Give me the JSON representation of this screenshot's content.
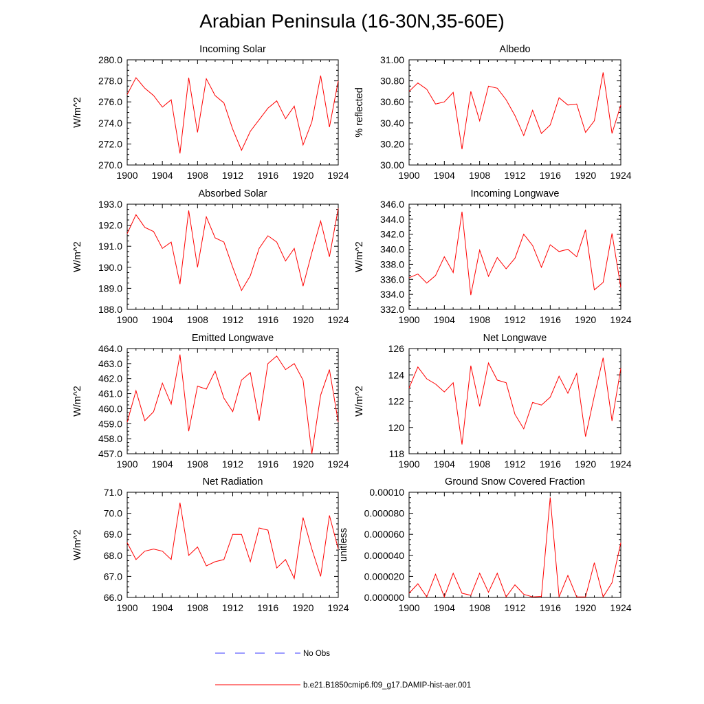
{
  "title": "Arabian Peninsula (16-30N,35-60E)",
  "legend": {
    "items": [
      {
        "label": "No Obs",
        "color": "#3a3aff",
        "style": "dashed"
      },
      {
        "label": "b.e21.B1850cmip6.f09_g17.DAMIP-hist-aer.001",
        "color": "#ff0000",
        "style": "solid"
      }
    ]
  },
  "chart_data": [
    {
      "type": "line",
      "title": "Incoming Solar",
      "ylabel": "W/m^2",
      "xlim": [
        1900,
        1924
      ],
      "ylim": [
        270.0,
        280.0
      ],
      "xticks": [
        1900,
        1904,
        1908,
        1912,
        1916,
        1920,
        1924
      ],
      "yticks": [
        "270.0",
        "272.0",
        "274.0",
        "276.0",
        "278.0",
        "280.0"
      ],
      "x": [
        1900,
        1901,
        1902,
        1903,
        1904,
        1905,
        1906,
        1907,
        1908,
        1909,
        1910,
        1911,
        1912,
        1913,
        1914,
        1915,
        1916,
        1917,
        1918,
        1919,
        1920,
        1921,
        1922,
        1923,
        1924
      ],
      "series": [
        {
          "name": "b.e21.B1850cmip6.f09_g17.DAMIP-hist-aer.001",
          "color": "#ff0000",
          "values": [
            276.7,
            278.3,
            277.3,
            276.6,
            275.5,
            276.2,
            271.1,
            278.3,
            273.1,
            278.2,
            276.6,
            275.9,
            273.4,
            271.4,
            273.2,
            274.3,
            275.4,
            276.1,
            274.4,
            275.6,
            271.9,
            274.1,
            278.5,
            273.6,
            278.0
          ]
        }
      ]
    },
    {
      "type": "line",
      "title": "Albedo",
      "ylabel": "% reflected",
      "xlim": [
        1900,
        1924
      ],
      "ylim": [
        30.0,
        31.0
      ],
      "xticks": [
        1900,
        1904,
        1908,
        1912,
        1916,
        1920,
        1924
      ],
      "yticks": [
        "30.00",
        "30.20",
        "30.40",
        "30.60",
        "30.80",
        "31.00"
      ],
      "x": [
        1900,
        1901,
        1902,
        1903,
        1904,
        1905,
        1906,
        1907,
        1908,
        1909,
        1910,
        1911,
        1912,
        1913,
        1914,
        1915,
        1916,
        1917,
        1918,
        1919,
        1920,
        1921,
        1922,
        1923,
        1924
      ],
      "series": [
        {
          "name": "b.e21.B1850cmip6.f09_g17.DAMIP-hist-aer.001",
          "color": "#ff0000",
          "values": [
            30.7,
            30.78,
            30.72,
            30.58,
            30.6,
            30.69,
            30.15,
            30.7,
            30.42,
            30.75,
            30.73,
            30.62,
            30.47,
            30.28,
            30.52,
            30.3,
            30.38,
            30.64,
            30.57,
            30.58,
            30.31,
            30.42,
            30.88,
            30.3,
            30.57
          ]
        }
      ]
    },
    {
      "type": "line",
      "title": "Absorbed Solar",
      "ylabel": "W/m^2",
      "xlim": [
        1900,
        1924
      ],
      "ylim": [
        188.0,
        193.0
      ],
      "xticks": [
        1900,
        1904,
        1908,
        1912,
        1916,
        1920,
        1924
      ],
      "yticks": [
        "188.0",
        "189.0",
        "190.0",
        "191.0",
        "192.0",
        "193.0"
      ],
      "x": [
        1900,
        1901,
        1902,
        1903,
        1904,
        1905,
        1906,
        1907,
        1908,
        1909,
        1910,
        1911,
        1912,
        1913,
        1914,
        1915,
        1916,
        1917,
        1918,
        1919,
        1920,
        1921,
        1922,
        1923,
        1924
      ],
      "series": [
        {
          "name": "b.e21.B1850cmip6.f09_g17.DAMIP-hist-aer.001",
          "color": "#ff0000",
          "values": [
            191.6,
            192.5,
            191.9,
            191.7,
            190.9,
            191.2,
            189.2,
            192.7,
            190.0,
            192.4,
            191.4,
            191.2,
            190.0,
            188.9,
            189.6,
            190.9,
            191.5,
            191.2,
            190.3,
            190.9,
            189.1,
            190.7,
            192.2,
            190.5,
            192.8
          ]
        }
      ]
    },
    {
      "type": "line",
      "title": "Incoming Longwave",
      "ylabel": "W/m^2",
      "xlim": [
        1900,
        1924
      ],
      "ylim": [
        332.0,
        346.0
      ],
      "xticks": [
        1900,
        1904,
        1908,
        1912,
        1916,
        1920,
        1924
      ],
      "yticks": [
        "332.0",
        "334.0",
        "336.0",
        "338.0",
        "340.0",
        "342.0",
        "344.0",
        "346.0"
      ],
      "x": [
        1900,
        1901,
        1902,
        1903,
        1904,
        1905,
        1906,
        1907,
        1908,
        1909,
        1910,
        1911,
        1912,
        1913,
        1914,
        1915,
        1916,
        1917,
        1918,
        1919,
        1920,
        1921,
        1922,
        1923,
        1924
      ],
      "series": [
        {
          "name": "b.e21.B1850cmip6.f09_g17.DAMIP-hist-aer.001",
          "color": "#ff0000",
          "values": [
            336.2,
            336.7,
            335.5,
            336.5,
            339.0,
            336.9,
            345.0,
            333.9,
            339.9,
            336.4,
            338.9,
            337.4,
            338.8,
            342.0,
            340.5,
            337.6,
            340.6,
            339.7,
            340.0,
            339.0,
            342.6,
            334.6,
            335.6,
            342.1,
            334.9
          ]
        }
      ]
    },
    {
      "type": "line",
      "title": "Emitted Longwave",
      "ylabel": "W/m^2",
      "xlim": [
        1900,
        1924
      ],
      "ylim": [
        457.0,
        464.0
      ],
      "xticks": [
        1900,
        1904,
        1908,
        1912,
        1916,
        1920,
        1924
      ],
      "yticks": [
        "457.0",
        "458.0",
        "459.0",
        "460.0",
        "461.0",
        "462.0",
        "463.0",
        "464.0"
      ],
      "x": [
        1900,
        1901,
        1902,
        1903,
        1904,
        1905,
        1906,
        1907,
        1908,
        1909,
        1910,
        1911,
        1912,
        1913,
        1914,
        1915,
        1916,
        1917,
        1918,
        1919,
        1920,
        1921,
        1922,
        1923,
        1924
      ],
      "series": [
        {
          "name": "b.e21.B1850cmip6.f09_g17.DAMIP-hist-aer.001",
          "color": "#ff0000",
          "values": [
            459.1,
            461.2,
            459.2,
            459.8,
            461.7,
            460.3,
            463.6,
            458.5,
            461.5,
            461.3,
            462.5,
            460.7,
            459.8,
            461.9,
            462.4,
            459.2,
            463.0,
            463.5,
            462.6,
            463.0,
            461.9,
            457.0,
            460.9,
            462.6,
            459.1
          ]
        }
      ]
    },
    {
      "type": "line",
      "title": "Net Longwave",
      "ylabel": "W/m^2",
      "xlim": [
        1900,
        1924
      ],
      "ylim": [
        118,
        126
      ],
      "xticks": [
        1900,
        1904,
        1908,
        1912,
        1916,
        1920,
        1924
      ],
      "yticks": [
        "118",
        "120",
        "122",
        "124",
        "126"
      ],
      "x": [
        1900,
        1901,
        1902,
        1903,
        1904,
        1905,
        1906,
        1907,
        1908,
        1909,
        1910,
        1911,
        1912,
        1913,
        1914,
        1915,
        1916,
        1917,
        1918,
        1919,
        1920,
        1921,
        1922,
        1923,
        1924
      ],
      "series": [
        {
          "name": "b.e21.B1850cmip6.f09_g17.DAMIP-hist-aer.001",
          "color": "#ff0000",
          "values": [
            123.0,
            124.6,
            123.7,
            123.3,
            122.7,
            123.4,
            118.7,
            124.7,
            121.6,
            124.9,
            123.6,
            123.4,
            121.0,
            119.9,
            121.9,
            121.7,
            122.3,
            123.9,
            122.6,
            124.1,
            119.3,
            122.4,
            125.3,
            120.5,
            124.5
          ]
        }
      ]
    },
    {
      "type": "line",
      "title": "Net Radiation",
      "ylabel": "W/m^2",
      "xlim": [
        1900,
        1924
      ],
      "ylim": [
        66.0,
        71.0
      ],
      "xticks": [
        1900,
        1904,
        1908,
        1912,
        1916,
        1920,
        1924
      ],
      "yticks": [
        "66.0",
        "67.0",
        "68.0",
        "69.0",
        "70.0",
        "71.0"
      ],
      "x": [
        1900,
        1901,
        1902,
        1903,
        1904,
        1905,
        1906,
        1907,
        1908,
        1909,
        1910,
        1911,
        1912,
        1913,
        1914,
        1915,
        1916,
        1917,
        1918,
        1919,
        1920,
        1921,
        1922,
        1923,
        1924
      ],
      "series": [
        {
          "name": "b.e21.B1850cmip6.f09_g17.DAMIP-hist-aer.001",
          "color": "#ff0000",
          "values": [
            68.6,
            67.8,
            68.2,
            68.3,
            68.2,
            67.8,
            70.5,
            68.0,
            68.4,
            67.5,
            67.7,
            67.8,
            69.0,
            69.0,
            67.7,
            69.3,
            69.2,
            67.4,
            67.8,
            66.9,
            69.8,
            68.3,
            67.0,
            69.9,
            68.3
          ]
        }
      ]
    },
    {
      "type": "line",
      "title": "Ground Snow Covered Fraction",
      "ylabel": "unitless",
      "xlim": [
        1900,
        1924
      ],
      "ylim": [
        0.0,
        0.0001
      ],
      "xticks": [
        1900,
        1904,
        1908,
        1912,
        1916,
        1920,
        1924
      ],
      "yticks": [
        "0.000000",
        "0.000020",
        "0.000040",
        "0.000060",
        "0.000080",
        "0.00010"
      ],
      "x": [
        1900,
        1901,
        1902,
        1903,
        1904,
        1905,
        1906,
        1907,
        1908,
        1909,
        1910,
        1911,
        1912,
        1913,
        1914,
        1915,
        1916,
        1917,
        1918,
        1919,
        1920,
        1921,
        1922,
        1923,
        1924
      ],
      "series": [
        {
          "name": "b.e21.B1850cmip6.f09_g17.DAMIP-hist-aer.001",
          "color": "#ff0000",
          "values": [
            4e-06,
            1.3e-05,
            5e-07,
            2.2e-05,
            5e-07,
            2.3e-05,
            4e-06,
            2e-06,
            2.3e-05,
            5e-06,
            2.3e-05,
            5e-07,
            1.2e-05,
            3e-06,
            5e-07,
            1e-06,
            9.5e-05,
            5e-07,
            2.1e-05,
            5e-07,
            5e-07,
            3.3e-05,
            5e-07,
            1.4e-05,
            5.2e-05
          ]
        }
      ]
    }
  ]
}
